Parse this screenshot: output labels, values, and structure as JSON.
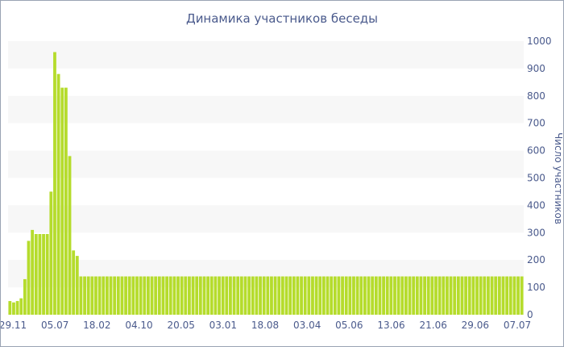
{
  "chart_data": {
    "type": "bar",
    "title": "Динамика участников беседы",
    "xlabel": "",
    "ylabel": "Число участников",
    "ylim": [
      0,
      1000
    ],
    "y_ticks": [
      0,
      100,
      200,
      300,
      400,
      500,
      600,
      700,
      800,
      900,
      1000
    ],
    "grid": "alternating horizontal bands",
    "x_tick_labels": [
      "29.11",
      "05.07",
      "18.02",
      "04.10",
      "20.05",
      "03.01",
      "18.08",
      "03.04",
      "05.06",
      "13.06",
      "21.06",
      "29.06",
      "07.07"
    ],
    "values": [
      50,
      45,
      50,
      60,
      130,
      270,
      310,
      295,
      295,
      295,
      295,
      450,
      960,
      880,
      830,
      830,
      580,
      235,
      215,
      140,
      140,
      140,
      140,
      140,
      140,
      140,
      140,
      140,
      140,
      140,
      140,
      140,
      140,
      140,
      140,
      140,
      140,
      140,
      140,
      140,
      140,
      140,
      140,
      140,
      140,
      140,
      140,
      140,
      140,
      140,
      140,
      140,
      140,
      140,
      140,
      140,
      140,
      140,
      140,
      140,
      140,
      140,
      140,
      140,
      140,
      140,
      140,
      140,
      140,
      140,
      140,
      140,
      140,
      140,
      140,
      140,
      140,
      140,
      140,
      140,
      140,
      140,
      140,
      140,
      140,
      140,
      140,
      140,
      140,
      140,
      140,
      140,
      140,
      140,
      140,
      140,
      140,
      140,
      140,
      140,
      140,
      140,
      140,
      140,
      140,
      140,
      140,
      140,
      140,
      140,
      140,
      140,
      140,
      140,
      140,
      140,
      140,
      140,
      140,
      140,
      140,
      140,
      140,
      140,
      140,
      140,
      140,
      140,
      140,
      140,
      140,
      140,
      140,
      140,
      140,
      140,
      140,
      140
    ],
    "bar_color": "#b5dc2c",
    "band_color": "#f7f7f7",
    "text_color": "#4a5a8c"
  }
}
